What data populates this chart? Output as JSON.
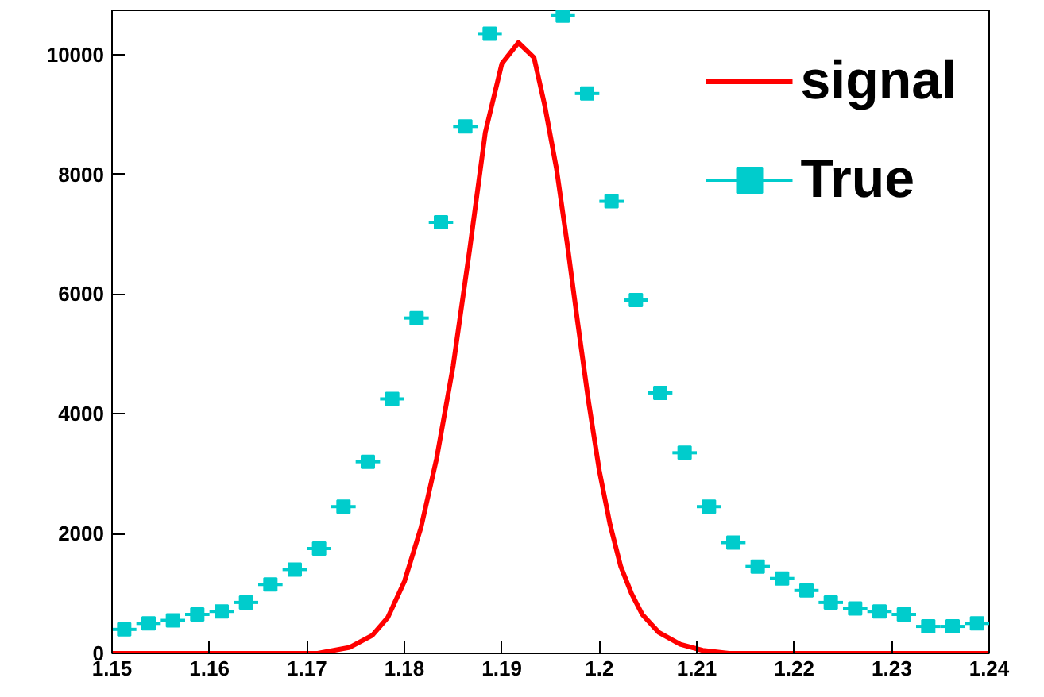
{
  "chart_data": {
    "type": "line",
    "xlim": [
      1.15,
      1.24
    ],
    "ylim": [
      0,
      10740
    ],
    "xticks": [
      1.15,
      1.16,
      1.17,
      1.18,
      1.19,
      {
        "value": 1.2,
        "label": "1.2"
      },
      1.21,
      1.22,
      1.23,
      1.24
    ],
    "yticks": [
      0,
      2000,
      4000,
      6000,
      8000,
      10000
    ],
    "grid": false,
    "legend": "top right",
    "series": [
      {
        "name": "signal",
        "color": "#ff0000",
        "line_style": "solid",
        "marker": "none",
        "x": [
          1.15,
          1.165,
          1.1711,
          1.1744,
          1.1767,
          1.1783,
          1.18,
          1.1817,
          1.1833,
          1.185,
          1.1867,
          1.1883,
          1.19,
          1.1917,
          1.1933,
          1.1944,
          1.1956,
          1.1967,
          1.1978,
          1.1989,
          1.2,
          1.2011,
          1.2022,
          1.2033,
          1.2044,
          1.2061,
          1.2083,
          1.2106,
          1.2133,
          1.22,
          1.24
        ],
        "values": [
          0,
          0,
          0,
          100,
          300,
          600,
          1200,
          2100,
          3250,
          4800,
          6750,
          8700,
          9850,
          10200,
          9950,
          9150,
          8100,
          6850,
          5500,
          4200,
          3050,
          2150,
          1450,
          1000,
          650,
          350,
          150,
          50,
          0,
          0,
          0
        ]
      },
      {
        "name": "True",
        "type": "scatter",
        "color": "#00cccc",
        "marker": "square",
        "x": [
          1.15125,
          1.15375,
          1.15625,
          1.15875,
          1.16125,
          1.16375,
          1.16625,
          1.16875,
          1.17125,
          1.17375,
          1.17625,
          1.17875,
          1.18125,
          1.18375,
          1.18625,
          1.18875,
          1.19125,
          1.19375,
          1.19625,
          1.19875,
          1.20125,
          1.20375,
          1.20625,
          1.20875,
          1.21125,
          1.21375,
          1.21625,
          1.21875,
          1.22125,
          1.22375,
          1.22625,
          1.22875,
          1.23125,
          1.23375,
          1.23625,
          1.23875
        ],
        "values": [
          400,
          500,
          550,
          650,
          700,
          850,
          1150,
          1400,
          1750,
          2450,
          3200,
          4250,
          5600,
          7200,
          8800,
          10350,
          null,
          null,
          10650,
          9350,
          7550,
          5900,
          4350,
          3350,
          2450,
          1850,
          1450,
          1250,
          1050,
          850,
          750,
          700,
          650,
          450,
          450,
          500
        ],
        "xerrors": [
          0.00125,
          0.00125,
          0.00125,
          0.00125,
          0.00125,
          0.00125,
          0.00125,
          0.00125,
          0.00125,
          0.00125,
          0.00125,
          0.00125,
          0.00125,
          0.00125,
          0.00125,
          0.00125,
          null,
          null,
          0.00125,
          0.00125,
          0.00125,
          0.00125,
          0.00125,
          0.00125,
          0.00125,
          0.00125,
          0.00125,
          0.00125,
          0.00125,
          0.00125,
          0.00125,
          0.00125,
          0.00125,
          0.00125,
          0.00125,
          0.00125
        ]
      }
    ]
  }
}
